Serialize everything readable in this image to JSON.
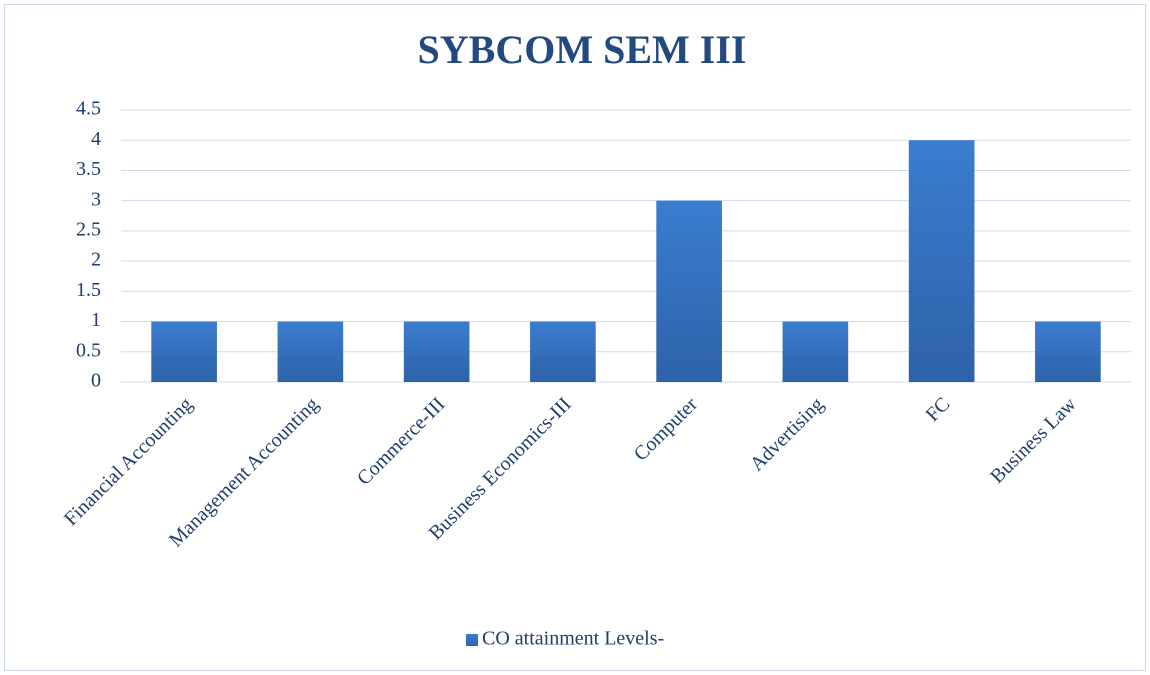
{
  "chart_data": {
    "type": "bar",
    "title": "SYBCOM SEM III",
    "categories": [
      "Financial Accounting",
      "Management Accounting",
      "Commerce-III",
      "Business Economics-III",
      "Computer",
      "Advertising",
      "FC",
      "Business Law"
    ],
    "series": [
      {
        "name": "CO attainment Levels-",
        "color": "#3b7dd0",
        "values": [
          1,
          1,
          1,
          1,
          3,
          1,
          4,
          1
        ]
      }
    ],
    "ylim": [
      0,
      4.5
    ],
    "yticks": [
      0,
      0.5,
      1,
      1.5,
      2,
      2.5,
      3,
      3.5,
      4,
      4.5
    ],
    "grid": true,
    "legend": "bottom"
  }
}
